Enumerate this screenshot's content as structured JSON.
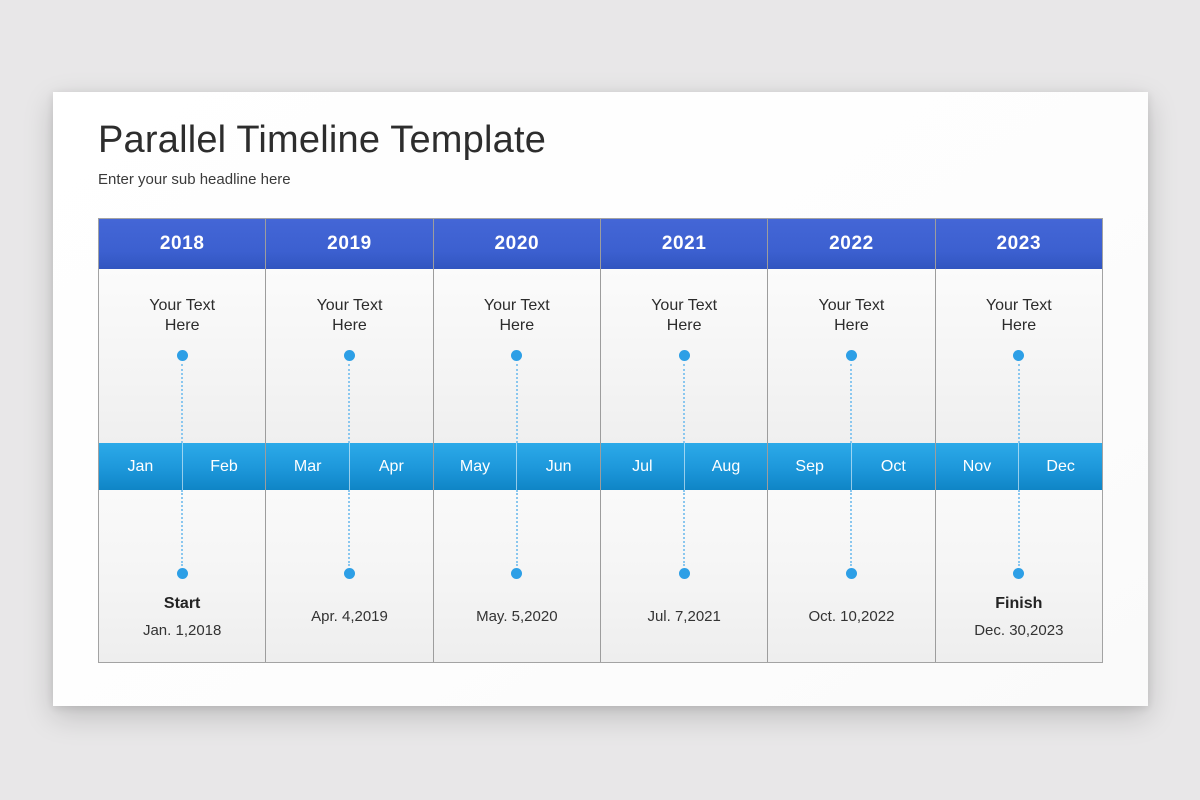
{
  "slide": {
    "title": "Parallel Timeline Template",
    "subtitle": "Enter your sub headline here"
  },
  "colors": {
    "year-header-top": "#4466d6",
    "year-header-bottom": "#3155c0",
    "month-top": "#2caae9",
    "month-bottom": "#0f85c6",
    "marker-dot": "#2d9fe6",
    "dotted-line": "#8ac7ef",
    "page-bg": "#e8e7e8"
  },
  "timeline": {
    "columns": [
      {
        "year": "2018",
        "top_text": "Your Text Here",
        "months": [
          "Jan",
          "Feb"
        ],
        "label": "Start",
        "date": "Jan. 1,2018"
      },
      {
        "year": "2019",
        "top_text": "Your Text Here",
        "months": [
          "Mar",
          "Apr"
        ],
        "label": "",
        "date": "Apr. 4,2019"
      },
      {
        "year": "2020",
        "top_text": "Your Text Here",
        "months": [
          "May",
          "Jun"
        ],
        "label": "",
        "date": "May. 5,2020"
      },
      {
        "year": "2021",
        "top_text": "Your Text Here",
        "months": [
          "Jul",
          "Aug"
        ],
        "label": "",
        "date": "Jul. 7,2021"
      },
      {
        "year": "2022",
        "top_text": "Your Text Here",
        "months": [
          "Sep",
          "Oct"
        ],
        "label": "",
        "date": "Oct. 10,2022"
      },
      {
        "year": "2023",
        "top_text": "Your Text Here",
        "months": [
          "Nov",
          "Dec"
        ],
        "label": "Finish",
        "date": "Dec. 30,2023"
      }
    ]
  }
}
